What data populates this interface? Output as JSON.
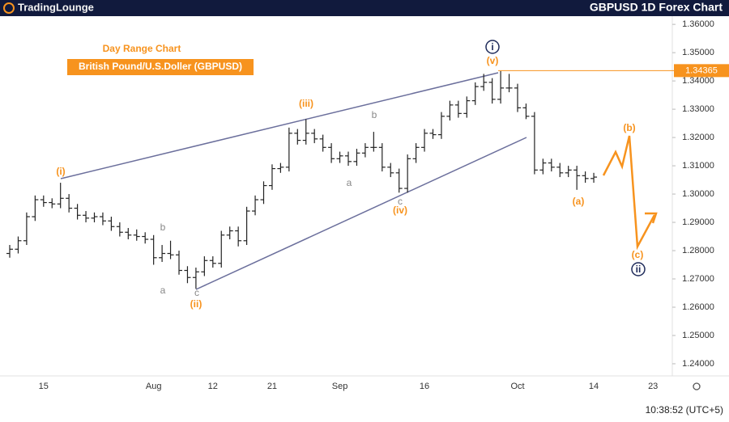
{
  "chart_data": {
    "type": "ohlc",
    "brand": "TradingLounge",
    "title": "GBPUSD 1D Forex Chart",
    "subtitle": "Day Range Chart",
    "instrument": "British Pound/U.S.Doller (GBPUSD)",
    "time": "10:38:52 (UTC+5)",
    "color": "#222222",
    "last_price": 1.34365,
    "last_price_color": "#f7931e",
    "categories": [
      null,
      null,
      null,
      null,
      "15",
      null,
      null,
      null,
      null,
      null,
      null,
      null,
      null,
      null,
      null,
      null,
      null,
      "Aug",
      null,
      null,
      null,
      null,
      null,
      null,
      "12",
      null,
      null,
      null,
      null,
      null,
      null,
      "21",
      null,
      null,
      null,
      null,
      null,
      null,
      null,
      "Sep",
      null,
      null,
      null,
      null,
      null,
      null,
      null,
      null,
      null,
      "16",
      null,
      null,
      null,
      null,
      null,
      null,
      null,
      null,
      null,
      null,
      "Oct",
      null,
      null,
      null,
      null,
      null,
      null,
      null,
      null,
      "14",
      null,
      null,
      null,
      null,
      null,
      null,
      "23",
      null,
      null
    ],
    "open": [
      1.279,
      1.2805,
      1.2835,
      1.292,
      1.298,
      1.297,
      1.2965,
      1.2985,
      1.295,
      1.2925,
      1.2915,
      1.292,
      1.2905,
      1.2885,
      1.2865,
      1.2855,
      1.285,
      1.284,
      1.2775,
      1.279,
      1.2785,
      1.273,
      1.2705,
      1.2725,
      1.2765,
      1.2755,
      1.2855,
      1.287,
      1.2835,
      1.294,
      1.298,
      1.303,
      1.309,
      1.3095,
      1.3215,
      1.319,
      1.3215,
      1.3195,
      1.3165,
      1.3125,
      1.3135,
      1.3115,
      1.3145,
      1.3165,
      1.3165,
      1.3095,
      1.3075,
      1.302,
      1.3125,
      1.3165,
      1.3215,
      1.321,
      1.3275,
      1.3315,
      1.3285,
      1.333,
      1.338,
      1.3395,
      1.3335,
      1.3375,
      1.3375,
      1.3305,
      1.3275,
      1.3085,
      1.311,
      1.3095,
      1.3075,
      1.3085,
      1.3065,
      1.3055,
      null,
      null,
      null,
      null,
      null,
      null,
      null,
      null,
      null
    ],
    "high": [
      1.282,
      1.285,
      1.2935,
      1.2995,
      1.2995,
      1.2985,
      1.304,
      1.3,
      1.2965,
      1.294,
      1.2935,
      1.2935,
      1.292,
      1.29,
      1.288,
      1.2875,
      1.2865,
      1.2855,
      1.282,
      1.2835,
      1.28,
      1.2745,
      1.274,
      1.278,
      1.278,
      1.287,
      1.2885,
      1.2885,
      1.2955,
      1.2995,
      1.3045,
      1.3105,
      1.311,
      1.3235,
      1.323,
      1.3265,
      1.323,
      1.321,
      1.318,
      1.315,
      1.315,
      1.316,
      1.318,
      1.322,
      1.318,
      1.311,
      1.309,
      1.314,
      1.318,
      1.323,
      1.323,
      1.329,
      1.333,
      1.333,
      1.3345,
      1.3395,
      1.3425,
      1.341,
      1.3435,
      1.3425,
      1.339,
      1.332,
      1.329,
      1.3125,
      1.3125,
      1.311,
      1.31,
      1.31,
      1.308,
      1.3075,
      null,
      null,
      null,
      null,
      null,
      null,
      null,
      null,
      null
    ],
    "low": [
      1.2775,
      1.279,
      1.282,
      1.2905,
      1.2955,
      1.295,
      1.295,
      1.2935,
      1.291,
      1.29,
      1.29,
      1.289,
      1.287,
      1.285,
      1.284,
      1.2835,
      1.2825,
      1.275,
      1.276,
      1.277,
      1.2715,
      1.2685,
      1.2665,
      1.271,
      1.274,
      1.274,
      1.284,
      1.2815,
      1.282,
      1.2925,
      1.2965,
      1.3015,
      1.3075,
      1.308,
      1.3175,
      1.3175,
      1.318,
      1.315,
      1.311,
      1.311,
      1.31,
      1.31,
      1.313,
      1.315,
      1.308,
      1.306,
      1.3005,
      1.3005,
      1.311,
      1.315,
      1.3195,
      1.3195,
      1.326,
      1.327,
      1.327,
      1.3315,
      1.3365,
      1.332,
      1.332,
      1.336,
      1.329,
      1.3265,
      1.307,
      1.307,
      1.308,
      1.306,
      1.306,
      1.3015,
      1.304,
      1.304,
      null,
      null,
      null,
      null,
      null,
      null,
      null,
      null,
      null
    ],
    "close": [
      1.2805,
      1.2835,
      1.292,
      1.298,
      1.297,
      1.2965,
      1.2985,
      1.295,
      1.2925,
      1.2915,
      1.292,
      1.2905,
      1.2885,
      1.2865,
      1.2855,
      1.285,
      1.284,
      1.2775,
      1.279,
      1.2785,
      1.273,
      1.2705,
      1.2725,
      1.2765,
      1.2755,
      1.2855,
      1.287,
      1.2835,
      1.294,
      1.298,
      1.303,
      1.309,
      1.3095,
      1.3215,
      1.319,
      1.3215,
      1.3195,
      1.3165,
      1.3125,
      1.3135,
      1.3115,
      1.3145,
      1.3165,
      1.3165,
      1.3095,
      1.3075,
      1.302,
      1.3125,
      1.3165,
      1.3215,
      1.321,
      1.3275,
      1.3315,
      1.3285,
      1.333,
      1.338,
      1.3395,
      1.3335,
      1.3375,
      1.3375,
      1.3305,
      1.3275,
      1.3085,
      1.311,
      1.3095,
      1.3075,
      1.3085,
      1.3065,
      1.3055,
      1.306,
      null,
      null,
      null,
      null,
      null,
      null,
      null,
      null,
      null
    ],
    "ylim": [
      1.2357,
      1.3629
    ],
    "yticks": [
      {
        "value": 1.36,
        "label": "1.36000"
      },
      {
        "value": 1.35,
        "label": "1.35000"
      },
      {
        "value": 1.34,
        "label": "1.34000"
      },
      {
        "value": 1.33,
        "label": "1.33000"
      },
      {
        "value": 1.32,
        "label": "1.32000"
      },
      {
        "value": 1.31,
        "label": "1.31000"
      },
      {
        "value": 1.3,
        "label": "1.30000"
      },
      {
        "value": 1.29,
        "label": "1.29000"
      },
      {
        "value": 1.28,
        "label": "1.28000"
      },
      {
        "value": 1.27,
        "label": "1.27000"
      },
      {
        "value": 1.26,
        "label": "1.26000"
      },
      {
        "value": 1.25,
        "label": "1.25000"
      },
      {
        "value": 1.24,
        "label": "1.24000"
      }
    ],
    "grid": false,
    "annotations": [
      "(i)",
      "(ii)",
      "(iii)",
      "(iv)",
      "(v)",
      "i",
      "a",
      "b",
      "c",
      "a",
      "b",
      "c",
      "(a)",
      "(b)",
      "(c)",
      "ii"
    ]
  }
}
